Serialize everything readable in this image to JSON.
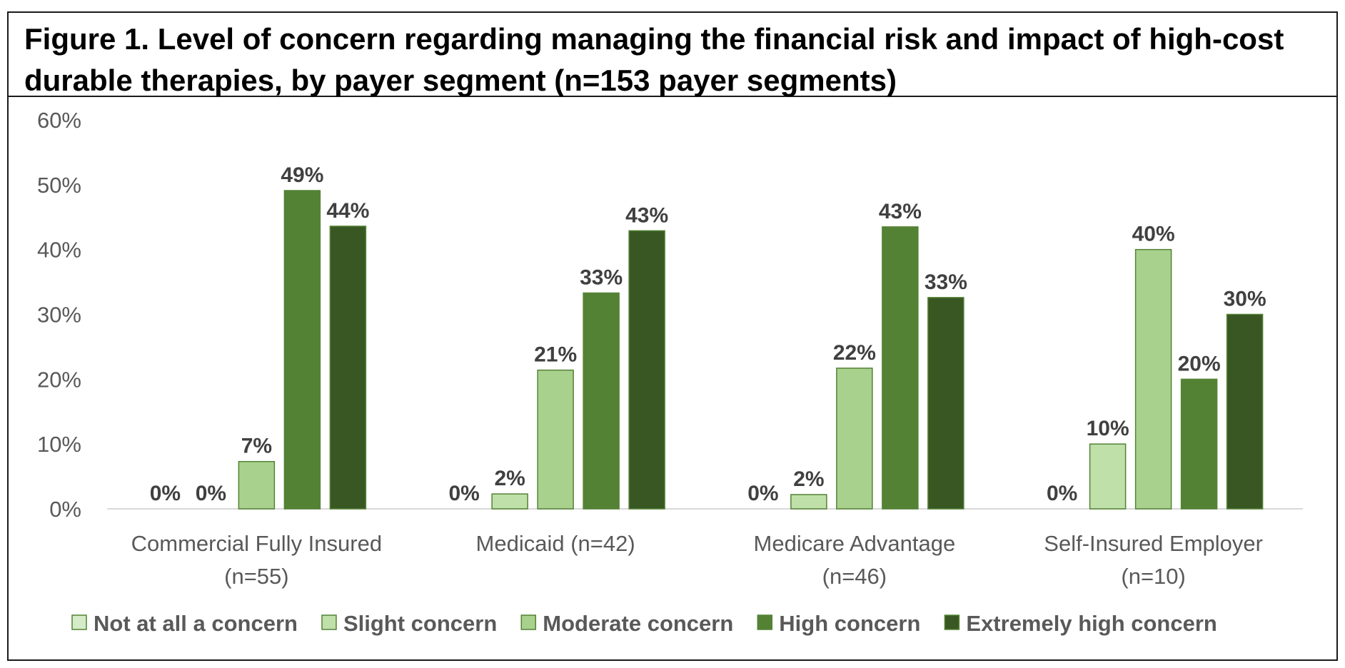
{
  "header": {
    "title_line1": "Figure 1. Level of concern regarding managing the financial risk and impact of high-cost",
    "title_line2": "durable therapies, by payer segment (n=153 payer segments)"
  },
  "chart_data": {
    "type": "bar",
    "title": "Figure 1. Level of concern regarding managing the financial risk and impact of high-cost durable therapies, by payer segment (n=153 payer segments)",
    "xlabel": "",
    "ylabel": "",
    "ylim": [
      0,
      60
    ],
    "yticks": [
      "0%",
      "10%",
      "20%",
      "30%",
      "40%",
      "50%",
      "60%"
    ],
    "grid": false,
    "legend_position": "bottom",
    "categories": [
      [
        "Commercial Fully Insured",
        "(n=55)"
      ],
      [
        "Medicaid (n=42)"
      ],
      [
        "Medicare Advantage",
        "(n=46)"
      ],
      [
        "Self-Insured Employer",
        "(n=10)"
      ]
    ],
    "series": [
      {
        "name": "Not at all a concern",
        "color": "#d5ecc9",
        "values": [
          0,
          0,
          0,
          0
        ],
        "labels": [
          "0%",
          "0%",
          "0%",
          "0%"
        ]
      },
      {
        "name": "Slight concern",
        "color": "#bfe0a8",
        "values": [
          0,
          2.3,
          2.2,
          10
        ],
        "labels": [
          "0%",
          "2%",
          "2%",
          "10%"
        ]
      },
      {
        "name": "Moderate concern",
        "color": "#a9d18e",
        "values": [
          7.3,
          21.4,
          21.7,
          40
        ],
        "labels": [
          "7%",
          "21%",
          "22%",
          "40%"
        ]
      },
      {
        "name": "High concern",
        "color": "#548235",
        "values": [
          49.1,
          33.3,
          43.5,
          20
        ],
        "labels": [
          "49%",
          "33%",
          "43%",
          "20%"
        ]
      },
      {
        "name": "Extremely high concern",
        "color": "#385723",
        "values": [
          43.6,
          42.9,
          32.6,
          30
        ],
        "labels": [
          "44%",
          "43%",
          "33%",
          "30%"
        ]
      }
    ]
  }
}
